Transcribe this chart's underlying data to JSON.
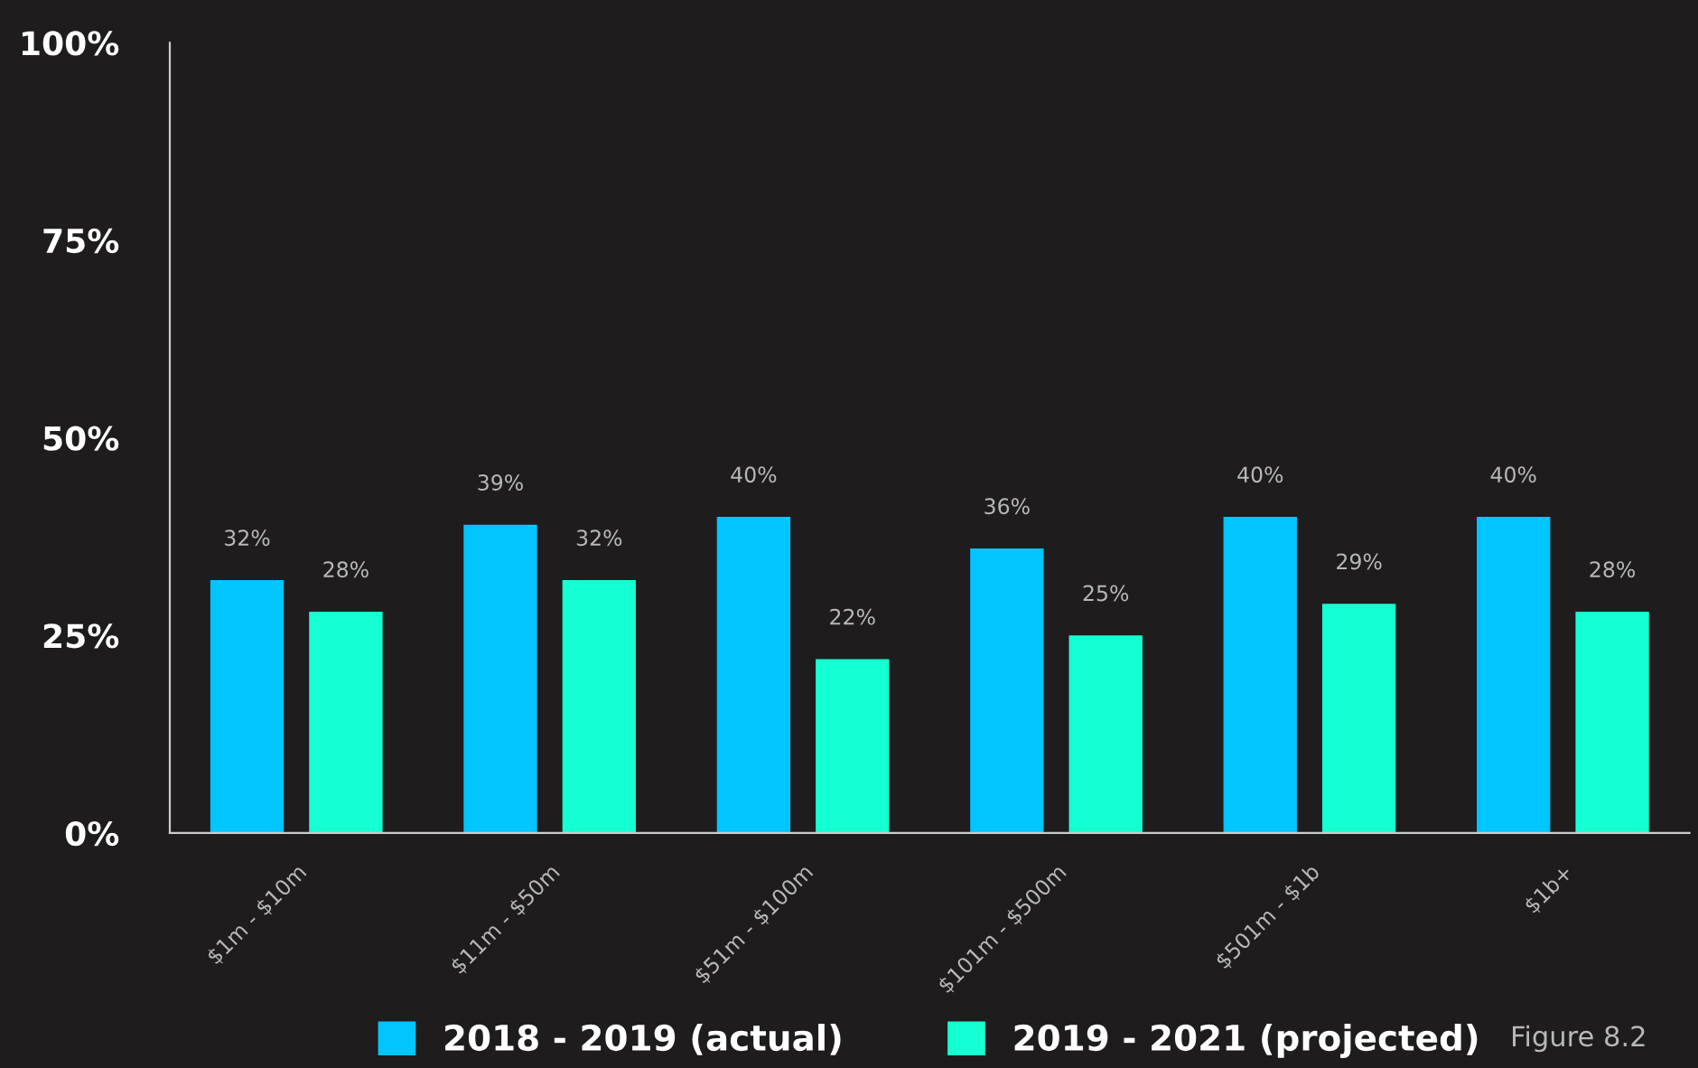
{
  "chart_data": {
    "type": "bar",
    "categories": [
      "$1m - $10m",
      "$11m - $50m",
      "$51m - $100m",
      "$101m - $500m",
      "$501m - $1b",
      "$1b+"
    ],
    "series": [
      {
        "name": "2018 - 2019 (actual)",
        "color": "#00c5ff",
        "values": [
          32,
          39,
          40,
          36,
          40,
          40
        ],
        "value_labels": [
          "32%",
          "39%",
          "40%",
          "36%",
          "40%",
          "40%"
        ]
      },
      {
        "name": "2019 - 2021 (projected)",
        "color": "#14ffd2",
        "values": [
          28,
          32,
          22,
          25,
          29,
          28
        ],
        "value_labels": [
          "28%",
          "32%",
          "22%",
          "25%",
          "29%",
          "28%"
        ]
      }
    ],
    "ylim": [
      0,
      100
    ],
    "yticks": [
      {
        "value": 0,
        "label": "0%"
      },
      {
        "value": 25,
        "label": "25%"
      },
      {
        "value": 50,
        "label": "50%"
      },
      {
        "value": 75,
        "label": "75%"
      },
      {
        "value": 100,
        "label": "100%"
      }
    ],
    "legend": "bottom",
    "grid": false,
    "annotations": [
      "Figure 8.2"
    ]
  }
}
